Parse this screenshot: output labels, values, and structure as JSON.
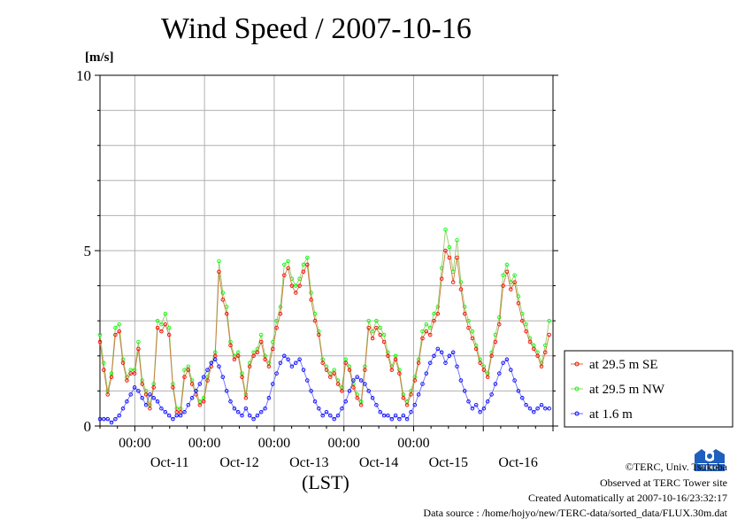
{
  "chart_data": {
    "type": "line",
    "title": "Wind Speed / 2007-10-16",
    "ylabel": "[m/s]",
    "xlabel": "(LST)",
    "ylim": [
      0,
      10
    ],
    "yticks": [
      0,
      5,
      10
    ],
    "xlim": [
      "2007-10-10 12:00",
      "2007-10-16 24:00"
    ],
    "x_midnight_ticks": [
      "00:00",
      "00:00",
      "00:00",
      "00:00",
      "00:00"
    ],
    "x_day_labels": [
      "Oct-11",
      "Oct-12",
      "Oct-13",
      "Oct-14",
      "Oct-15",
      "Oct-16"
    ],
    "grid": true,
    "legend_position": "right",
    "sample_interval_hours": 1,
    "series": [
      {
        "name": "at 29.5 m SE",
        "color": "#ff0000",
        "values": [
          2.4,
          1.6,
          0.9,
          1.4,
          2.6,
          2.7,
          1.8,
          1.3,
          1.5,
          1.5,
          2.2,
          1.2,
          0.9,
          0.5,
          1.1,
          2.8,
          2.7,
          2.9,
          2.6,
          1.1,
          0.4,
          0.4,
          1.4,
          1.6,
          1.2,
          0.9,
          0.6,
          0.7,
          1.3,
          1.7,
          2.0,
          4.4,
          3.6,
          3.2,
          2.3,
          1.9,
          2.0,
          1.4,
          0.8,
          1.7,
          2.0,
          2.1,
          2.4,
          1.9,
          1.7,
          2.2,
          2.8,
          3.2,
          4.3,
          4.5,
          4.0,
          3.8,
          4.0,
          4.4,
          4.6,
          3.6,
          3.0,
          2.6,
          1.8,
          1.6,
          1.4,
          1.5,
          1.2,
          1.0,
          1.8,
          1.6,
          1.1,
          0.8,
          0.6,
          1.6,
          2.8,
          2.5,
          2.8,
          2.6,
          2.4,
          2.0,
          1.6,
          1.9,
          1.5,
          0.8,
          0.6,
          0.9,
          1.3,
          1.8,
          2.5,
          2.7,
          2.6,
          3.0,
          3.2,
          4.2,
          5.0,
          4.8,
          4.1,
          4.8,
          3.9,
          3.2,
          2.8,
          2.5,
          2.2,
          1.8,
          1.6,
          1.4,
          2.0,
          2.4,
          2.9,
          4.0,
          4.4,
          3.9,
          4.1,
          3.5,
          3.0,
          2.7,
          2.4,
          2.2,
          2.0,
          1.7,
          2.1,
          2.6
        ]
      },
      {
        "name": "at 29.5 m NW",
        "color": "#00ff00",
        "values": [
          2.6,
          1.8,
          1.0,
          1.5,
          2.8,
          2.9,
          1.9,
          1.4,
          1.6,
          1.6,
          2.4,
          1.3,
          1.0,
          0.6,
          1.2,
          3.0,
          2.9,
          3.2,
          2.8,
          1.2,
          0.5,
          0.5,
          1.6,
          1.7,
          1.3,
          1.0,
          0.7,
          0.8,
          1.4,
          1.8,
          2.1,
          4.7,
          3.8,
          3.4,
          2.4,
          2.0,
          2.1,
          1.5,
          0.9,
          1.8,
          2.1,
          2.2,
          2.6,
          2.0,
          1.8,
          2.4,
          3.0,
          3.4,
          4.6,
          4.7,
          4.2,
          4.0,
          4.2,
          4.6,
          4.8,
          3.8,
          3.2,
          2.7,
          1.9,
          1.7,
          1.5,
          1.6,
          1.3,
          1.1,
          1.9,
          1.7,
          1.2,
          0.9,
          0.7,
          1.7,
          3.0,
          2.7,
          3.0,
          2.8,
          2.6,
          2.1,
          1.7,
          2.0,
          1.6,
          0.9,
          0.7,
          1.0,
          1.4,
          1.9,
          2.7,
          2.9,
          2.8,
          3.2,
          3.4,
          4.5,
          5.6,
          5.1,
          4.4,
          5.3,
          4.1,
          3.4,
          3.0,
          2.7,
          2.3,
          1.9,
          1.7,
          1.5,
          2.1,
          2.6,
          3.1,
          4.3,
          4.6,
          4.1,
          4.3,
          3.7,
          3.2,
          2.9,
          2.5,
          2.3,
          2.1,
          1.8,
          2.3,
          3.0
        ]
      },
      {
        "name": "at 1.6 m",
        "color": "#0000ff",
        "values": [
          0.2,
          0.2,
          0.2,
          0.1,
          0.2,
          0.3,
          0.5,
          0.7,
          0.9,
          1.1,
          1.0,
          0.8,
          0.6,
          0.9,
          0.8,
          0.7,
          0.5,
          0.4,
          0.3,
          0.2,
          0.3,
          0.3,
          0.4,
          0.6,
          0.8,
          1.0,
          1.2,
          1.4,
          1.6,
          1.8,
          1.9,
          1.7,
          1.4,
          1.0,
          0.7,
          0.5,
          0.4,
          0.3,
          0.5,
          0.3,
          0.2,
          0.3,
          0.4,
          0.5,
          0.8,
          1.2,
          1.5,
          1.8,
          2.0,
          1.9,
          1.7,
          1.8,
          1.9,
          1.6,
          1.3,
          1.0,
          0.7,
          0.5,
          0.3,
          0.4,
          0.3,
          0.2,
          0.3,
          0.5,
          0.7,
          1.0,
          1.3,
          1.4,
          1.3,
          1.2,
          1.0,
          0.8,
          0.6,
          0.4,
          0.3,
          0.3,
          0.2,
          0.3,
          0.2,
          0.3,
          0.2,
          0.4,
          0.6,
          0.9,
          1.2,
          1.5,
          1.8,
          2.0,
          2.2,
          2.1,
          1.8,
          2.0,
          2.1,
          1.7,
          1.3,
          1.0,
          0.7,
          0.5,
          0.6,
          0.4,
          0.5,
          0.7,
          0.9,
          1.2,
          1.5,
          1.8,
          1.9,
          1.6,
          1.3,
          1.0,
          0.8,
          0.6,
          0.5,
          0.4,
          0.5,
          0.6,
          0.5,
          0.5
        ]
      }
    ]
  },
  "credits": {
    "copyright": "©TERC, Univ. Tsukuba",
    "site": "Observed at TERC Tower site",
    "created": "Created Automatically at 2007-10-16/23:32:17",
    "source": "Data source : /home/hojyo/new/TERC-data/sorted_data/FLUX.30m.dat"
  },
  "logo_text": "TERC"
}
